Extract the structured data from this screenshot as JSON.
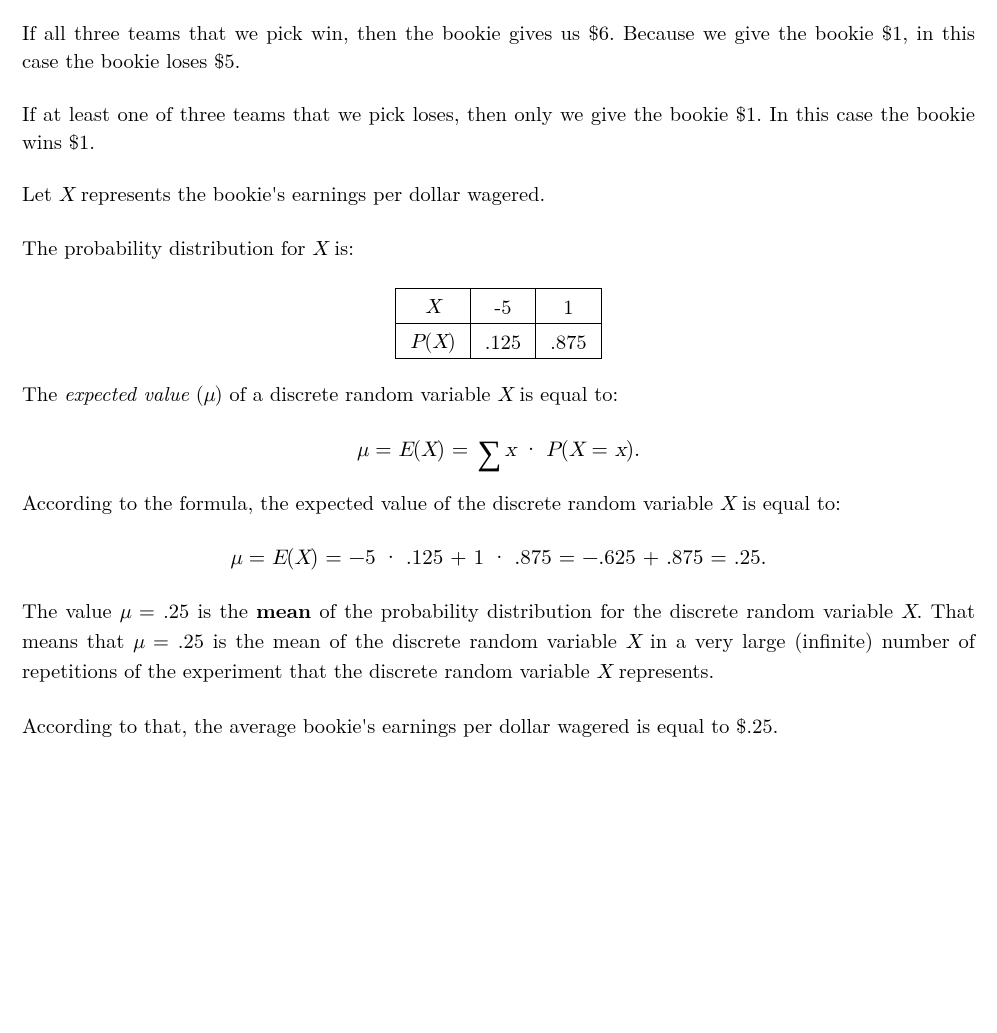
{
  "p1": "If all three teams that we pick win, then the bookie gives us $6. Because we give the bookie $1, in this case the bookie loses $5.",
  "p2": "If at least one of three teams that we pick loses, then only we give the bookie $1. In this case the bookie wins $1.",
  "p3_a": "Let ",
  "p3_X": "X",
  "p3_b": " represents the bookie's earnings per dollar wagered.",
  "p4_a": "The probability distribution for ",
  "p4_X": "X",
  "p4_b": " is:",
  "table": {
    "row1": {
      "c1_X": "X",
      "c2": "-5",
      "c3": "1"
    },
    "row2": {
      "c1_P": "P",
      "c1_paren_open": "(",
      "c1_X": "X",
      "c1_paren_close": ")",
      "c2": ".125",
      "c3": ".875"
    }
  },
  "p5_a": "The ",
  "p5_ev": "expected value",
  "p5_b": " (",
  "p5_mu": "μ",
  "p5_c": ") of a discrete random variable ",
  "p5_X": "X",
  "p5_d": " is equal to:",
  "eq1": {
    "lhs_mu": "μ",
    "eq1": " = ",
    "E": "E",
    "op": "(",
    "X1": "X",
    "cp": ")",
    "eq2": " = ",
    "sigma": "∑",
    "x": "x",
    "cdot": " · ",
    "P": "P",
    "op2": "(",
    "X2": "X",
    "eq3": " = ",
    "x2": "x",
    "cp2": ").",
    "end": ""
  },
  "p6_a": "According to the formula, the expected value of the discrete random variable ",
  "p6_X": "X",
  "p6_b": " is equal to:",
  "eq2": {
    "mu": "μ",
    "s1": " = ",
    "E": "E",
    "op": "(",
    "X": "X",
    "cp": ")",
    "s2": " = −5 · .125 + 1 · .875 = −.625 + .875 = .25."
  },
  "p7_a": "The value ",
  "p7_mu": "μ",
  "p7_b": " = .25 is the ",
  "p7_mean": "mean",
  "p7_c": " of the probability distribution for the discrete random variable ",
  "p7_X1": "X",
  "p7_d": ". That means that ",
  "p7_mu2": "μ",
  "p7_e": " = .25 is the mean of the discrete random variable ",
  "p7_X2": "X",
  "p7_f": " in a very large (infinite) number of repetitions of the experiment that the discrete random variable ",
  "p7_X3": "X",
  "p7_g": " represents.",
  "p8": "According to that, the average bookie's earnings per dollar wagered is equal to $.25."
}
